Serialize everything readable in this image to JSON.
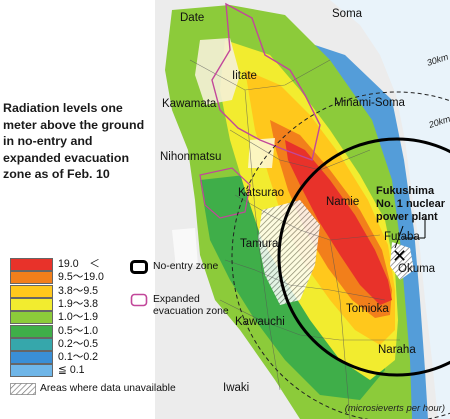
{
  "title_lines": [
    "Radiation levels one",
    "meter above the ground",
    "in no-entry and",
    "expanded evacuation",
    "zone as of Feb. 10"
  ],
  "place_names": {
    "date": "Date",
    "soma": "Soma",
    "iitate": "Iitate",
    "kawamata": "Kawamata",
    "minami_soma": "Minami-Soma",
    "nihonmatsu": "Nihonmatsu",
    "katsurao": "Katsurao",
    "namie": "Namie",
    "tamura": "Tamura",
    "futaba": "Futaba",
    "okuma": "Okuma",
    "tomioka": "Tomioka",
    "kawauchi": "Kawauchi",
    "naraha": "Naraha",
    "iwaki": "Iwaki"
  },
  "plant_label_lines": [
    "Fukushima",
    "No. 1 nuclear",
    "power plant"
  ],
  "radius_labels": {
    "r30": "30km",
    "r20": "20km"
  },
  "radiation_scale": [
    {
      "label": "19.0　＜",
      "color": "#e8322a"
    },
    {
      "label": "9.5～19.0",
      "color": "#f27f1b"
    },
    {
      "label": "3.8～9.5",
      "color": "#ffc81c"
    },
    {
      "label": "1.9～3.8",
      "color": "#f2ec2f"
    },
    {
      "label": "1.0～1.9",
      "color": "#8ccb3a"
    },
    {
      "label": "0.5～1.0",
      "color": "#3fae49"
    },
    {
      "label": "0.2～0.5",
      "color": "#36a7ab"
    },
    {
      "label": "0.1～0.2",
      "color": "#3a8fd6"
    },
    {
      "label": "≦ 0.1",
      "color": "#6fb6e8"
    }
  ],
  "zones": {
    "no_entry": "No-entry zone",
    "expanded_line1": "Expanded",
    "expanded_line2": "evacuation zone",
    "no_entry_color": "#000000",
    "expanded_color": "#c2479a"
  },
  "unavailable_label": "Areas where data unavailable",
  "units": "(microsieverts per hour)"
}
